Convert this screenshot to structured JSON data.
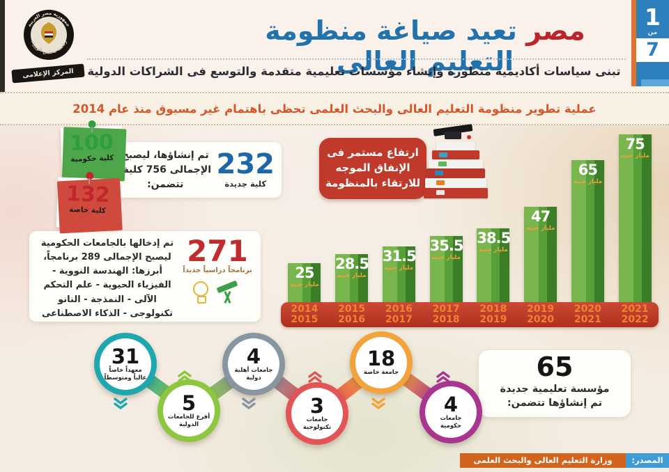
{
  "header": {
    "logo": {
      "ring_top": "جمهورية مصر العربية",
      "ring_bottom": "رئاسة مجلس الوزراء",
      "ribbon": "المركز الإعلامى"
    },
    "title_red": "مصر",
    "title_blue": "تعيد صياغة منظومة التعليم العالى",
    "subtitle": "تبنى سياسات أكاديمية متطورة وإنشاء مؤسسات تعليمية متقدمة والتوسع فى الشراكات الدولية",
    "page_indicator": {
      "current": "1",
      "of_word": "من",
      "total": "7"
    }
  },
  "banner": {
    "text": "عملية تطوير منظومة التعليم العالى والبحث العلمى تحظى باهتمام غير مسبوق منذ عام 2014"
  },
  "colleges": {
    "notes": [
      {
        "number": "100",
        "label": "كلية حكومية",
        "color": "#2f9e41"
      },
      {
        "number": "132",
        "label": "كلية خاصة",
        "color": "#c0272d"
      }
    ],
    "number": "232",
    "number_label": "كلية جديدة",
    "text": "تم إنشاؤها، ليصبح الإجمالى 756 كلية، تتضمن:"
  },
  "programs": {
    "number": "271",
    "number_label": "برنامجاً دراسياً جديداً",
    "text": "تم إدخالها بالجامعات الحكومية ليصبح الإجمالى 289 برنامجاً، أبرزها: الهندسة النووية - الفيزياء الحيوية - علم التحكم الآلى - النمذجة - النانو تكنولوجى - الذكاء الاصطناعى"
  },
  "spending_callout": {
    "text": "ارتفاع مستمر فى الإنفاق الموجه للارتقاء بالمنظومة",
    "bg": "#bf3a2b"
  },
  "chart_data": {
    "type": "bar",
    "categories": [
      [
        "2014",
        "2015"
      ],
      [
        "2015",
        "2016"
      ],
      [
        "2016",
        "2017"
      ],
      [
        "2017",
        "2018"
      ],
      [
        "2018",
        "2019"
      ],
      [
        "2019",
        "2020"
      ],
      [
        "2020",
        "2021"
      ],
      [
        "2021",
        "2022"
      ]
    ],
    "values": [
      25,
      28.5,
      31.5,
      35.5,
      38.5,
      47,
      65,
      75
    ],
    "unit_label": "مليار جنيه",
    "ylim": [
      0,
      75
    ],
    "bar_color_light": "#79b64e",
    "bar_color_dark": "#3c7e28",
    "axis_band_color": "#bf3a2b",
    "year_text_color": "#f08233"
  },
  "institutions": {
    "circles": [
      {
        "number": "31",
        "label": "معهداً خاصاً عالياً ومتوسطاً",
        "color": "#1fa7b0"
      },
      {
        "number": "5",
        "label": "أفرع للجامعات الدولية",
        "color": "#8dc63f"
      },
      {
        "number": "4",
        "label": "جامعات أهلية دولية",
        "color": "#8796a1"
      },
      {
        "number": "3",
        "label": "جامعات تكنولوجية",
        "color": "#e25455"
      },
      {
        "number": "18",
        "label": "جامعة خاصة",
        "color": "#f2a33c"
      },
      {
        "number": "4",
        "label": "جامعات حكومية",
        "color": "#a8368f"
      }
    ],
    "summary": {
      "number": "65",
      "line1": "مؤسسة تعليمية  جديدة",
      "line2": "تم إنشاؤها تتضمن:"
    }
  },
  "footer": {
    "source_label": "المصدر:",
    "source_value": "وزارة التعليم العالى والبحث العلمى"
  }
}
